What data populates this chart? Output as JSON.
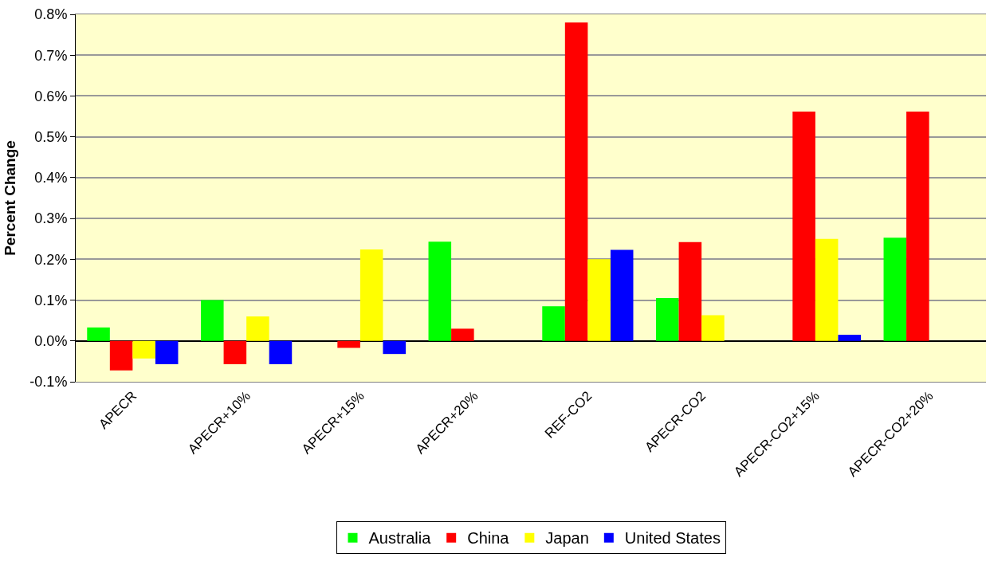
{
  "chart_data": {
    "type": "bar",
    "ylabel": "Percent Change",
    "categories": [
      "APECR",
      "APECR+10%",
      "APECR+15%",
      "APECR+20%",
      "REF-CO2",
      "APECR-CO2",
      "APECR-CO2+15%",
      "APECR-CO2+20%"
    ],
    "series": [
      {
        "name": "Australia",
        "color": "#00ff00",
        "values": [
          0.033,
          0.1,
          null,
          0.243,
          0.085,
          0.105,
          null,
          0.253
        ]
      },
      {
        "name": "China",
        "color": "#ff0000",
        "values": [
          -0.072,
          -0.057,
          -0.017,
          0.03,
          0.78,
          0.242,
          0.562,
          0.562
        ]
      },
      {
        "name": "Japan",
        "color": "#ffff00",
        "values": [
          -0.043,
          0.06,
          0.224,
          null,
          0.2,
          0.063,
          0.25,
          null
        ]
      },
      {
        "name": "United States",
        "color": "#0000ff",
        "values": [
          -0.057,
          -0.057,
          -0.032,
          null,
          0.223,
          null,
          0.015,
          null
        ]
      }
    ],
    "ylim": [
      -0.1,
      0.8
    ],
    "yticks": [
      {
        "value": -0.1,
        "label": "-0.1%"
      },
      {
        "value": 0,
        "label": "0.0%"
      },
      {
        "value": 0.1,
        "label": "0.1%"
      },
      {
        "value": 0.2,
        "label": "0.2%"
      },
      {
        "value": 0.3,
        "label": "0.3%"
      },
      {
        "value": 0.4,
        "label": "0.4%"
      },
      {
        "value": 0.5,
        "label": "0.5%"
      },
      {
        "value": 0.6,
        "label": "0.6%"
      },
      {
        "value": 0.7,
        "label": "0.7%"
      },
      {
        "value": 0.8,
        "label": "0.8%"
      }
    ],
    "grid": "y",
    "legend": "bottom"
  }
}
